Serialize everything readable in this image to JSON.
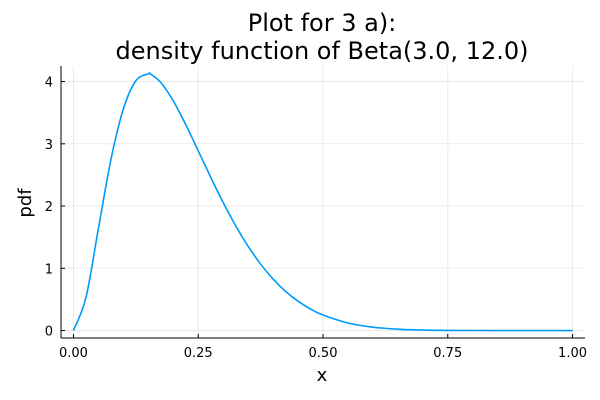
{
  "chart_data": {
    "type": "line",
    "title": [
      "Plot for 3 a):",
      "density function of Beta(3.0, 12.0)"
    ],
    "xlabel": "x",
    "ylabel": "pdf",
    "xlim": [
      -0.025,
      1.025
    ],
    "ylim": [
      -0.12,
      4.25
    ],
    "xticks": [
      0.0,
      0.25,
      0.5,
      0.75,
      1.0
    ],
    "xtick_labels": [
      "0.00",
      "0.25",
      "0.50",
      "0.75",
      "1.00"
    ],
    "yticks": [
      0,
      1,
      2,
      3,
      4
    ],
    "ytick_labels": [
      "0",
      "1",
      "2",
      "3",
      "4"
    ],
    "grid": true,
    "legend": "none",
    "colors": {
      "series": "#009AFA"
    },
    "series": [
      {
        "x": [
          0.0,
          0.025,
          0.05,
          0.075,
          0.1,
          0.125,
          0.15,
          0.1538,
          0.175,
          0.2,
          0.225,
          0.25,
          0.275,
          0.3,
          0.325,
          0.35,
          0.375,
          0.4,
          0.425,
          0.45,
          0.475,
          0.5,
          0.55,
          0.6,
          0.65,
          0.7,
          0.75,
          0.8,
          0.85,
          0.9,
          0.95,
          1.0
        ],
        "y": [
          0.0,
          0.529,
          1.642,
          2.745,
          3.561,
          4.013,
          4.124,
          4.124,
          3.985,
          3.689,
          3.308,
          2.887,
          2.463,
          2.057,
          1.684,
          1.353,
          1.068,
          0.827,
          0.629,
          0.471,
          0.346,
          0.249,
          0.121,
          0.054,
          0.022,
          0.008,
          0.002,
          0.0005,
          0.0001,
          0.0,
          0.0,
          0.0
        ]
      }
    ]
  }
}
